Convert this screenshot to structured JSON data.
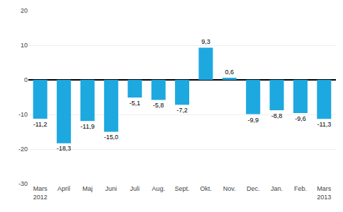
{
  "chart_data": {
    "type": "bar",
    "categories": [
      "Mars\n2012",
      "April",
      "Maj",
      "Juni",
      "Juli",
      "Aug.",
      "Sept.",
      "Okt.",
      "Nov.",
      "Dec.",
      "Jan.",
      "Feb.",
      "Mars\n2013"
    ],
    "values": [
      -11.2,
      -18.3,
      -11.9,
      -15.0,
      -5.1,
      -5.8,
      -7.2,
      9.3,
      0.6,
      -9.9,
      -8.8,
      -9.6,
      -11.3
    ],
    "value_labels": [
      "-11,2",
      "-18,3",
      "-11,9",
      "-15,0",
      "-5,1",
      "-5,8",
      "-7,2",
      "9,3",
      "0,6",
      "-9,9",
      "-8,8",
      "-9,6",
      "-11,3"
    ],
    "color": "#1ea8e0",
    "ylim": [
      -30,
      20
    ],
    "yticks": [
      -30,
      -20,
      -10,
      0,
      10,
      20
    ],
    "grid": true,
    "data_labels": true
  }
}
